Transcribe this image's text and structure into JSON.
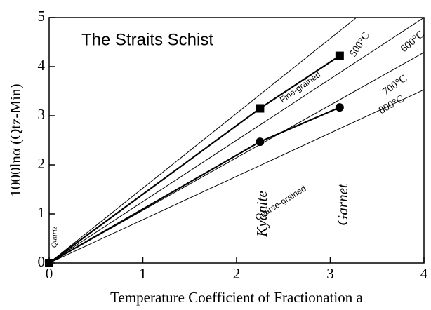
{
  "chart_data": {
    "type": "line",
    "xlabel": "Temperature Coefficient of Fractionation a",
    "ylabel": "1000lnα (Qtz-Min)",
    "xlim": [
      0,
      4
    ],
    "ylim": [
      0,
      5
    ],
    "xticks": [
      0,
      1,
      2,
      3,
      4
    ],
    "yticks": [
      0,
      1,
      2,
      3,
      4,
      5
    ],
    "series": [
      {
        "name": "500°C",
        "color": "#000000",
        "x": [
          0,
          3.28
        ],
        "values": [
          0,
          5
        ]
      },
      {
        "name": "600°C",
        "color": "#000000",
        "x": [
          0,
          4
        ],
        "values": [
          0,
          5
        ]
      },
      {
        "name": "700°C",
        "color": "#000000",
        "x": [
          0,
          4
        ],
        "values": [
          0,
          4.29
        ]
      },
      {
        "name": "800°C",
        "color": "#000000",
        "x": [
          0,
          4
        ],
        "values": [
          0,
          3.53
        ]
      },
      {
        "name": "Fine-grained",
        "color": "#000000",
        "marker": "square",
        "x": [
          0,
          2.25,
          3.1
        ],
        "values": [
          0,
          3.15,
          4.22
        ]
      },
      {
        "name": "Coarse-grained",
        "color": "#000000",
        "marker": "circle",
        "x": [
          0,
          2.25,
          3.1
        ],
        "values": [
          0,
          2.47,
          3.17
        ]
      }
    ],
    "annotations": [
      "The Straits Schist",
      "Quartz",
      "Kyanite",
      "Garnet"
    ]
  }
}
